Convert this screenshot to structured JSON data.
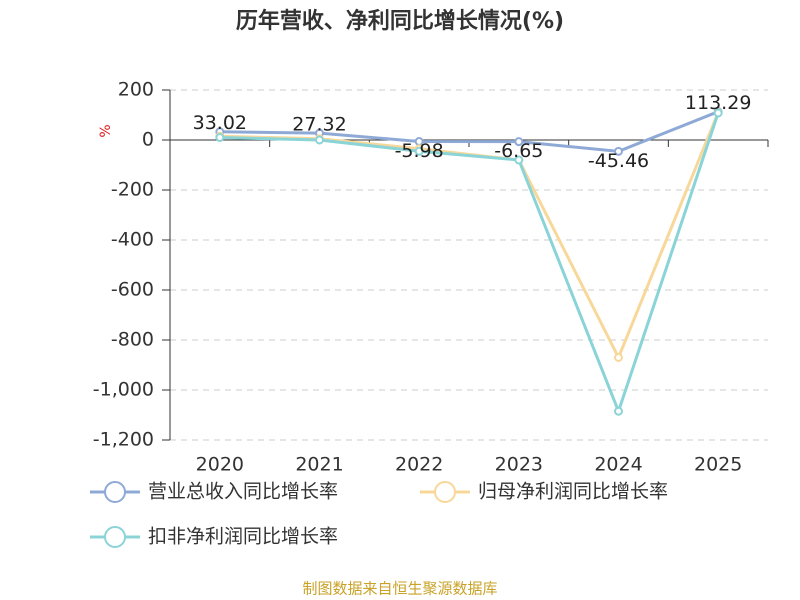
{
  "chart_data": {
    "type": "line",
    "title": "历年营收、净利同比增长情况(%)",
    "y_label": "%",
    "categories": [
      "2020",
      "2021",
      "2022",
      "2023",
      "2024",
      "2025"
    ],
    "series": [
      {
        "name": "营业总收入同比增长率",
        "color": "#8fa9d6",
        "values": [
          33.02,
          27.32,
          -5.98,
          -6.65,
          -45.46,
          113.29
        ],
        "show_labels": true
      },
      {
        "name": "归母净利润同比增长率",
        "color": "#f8d89a",
        "values": [
          15,
          5,
          -35,
          -80,
          -870,
          110
        ],
        "show_labels": false
      },
      {
        "name": "扣非净利润同比增长率",
        "color": "#8ad4d8",
        "values": [
          10,
          0,
          -45,
          -80,
          -1085,
          108
        ],
        "show_labels": false
      }
    ],
    "ylim": [
      -1200,
      200
    ],
    "yticks": [
      200,
      0,
      -200,
      -400,
      -600,
      -800,
      {
        "value": -1000,
        "label": "-1,000"
      },
      {
        "value": -1200,
        "label": "-1,200"
      }
    ],
    "grid": true,
    "source": "制图数据来自恒生聚源数据库"
  }
}
